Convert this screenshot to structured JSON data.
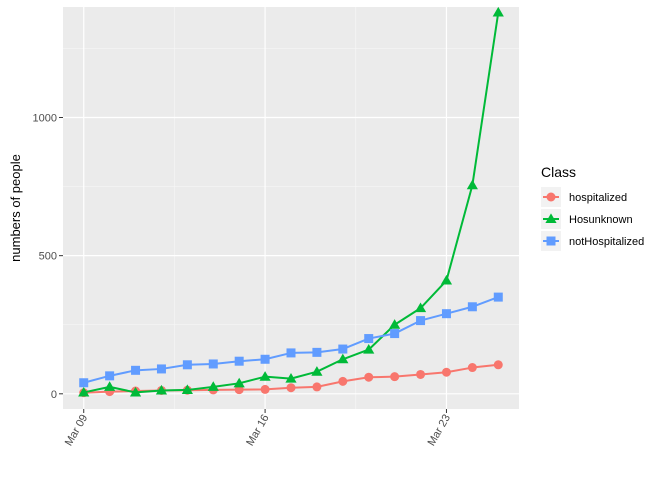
{
  "chart_data": {
    "type": "line",
    "x": [
      "2020-03-09",
      "2020-03-10",
      "2020-03-11",
      "2020-03-12",
      "2020-03-13",
      "2020-03-14",
      "2020-03-15",
      "2020-03-16",
      "2020-03-17",
      "2020-03-18",
      "2020-03-19",
      "2020-03-20",
      "2020-03-21",
      "2020-03-22",
      "2020-03-23",
      "2020-03-24",
      "2020-03-25"
    ],
    "x_tick_labels": [
      "Mar 09",
      "Mar 16",
      "Mar 23"
    ],
    "x_tick_values": [
      "2020-03-09",
      "2020-03-16",
      "2020-03-23"
    ],
    "y_ticks": [
      0,
      500,
      1000
    ],
    "y_tick_labels": [
      "0",
      "500",
      "1000"
    ],
    "ylim": [
      -55,
      1400
    ],
    "ylabel": "numbers of people",
    "xlabel": "",
    "grid": true,
    "legend": {
      "title": "Class",
      "placement": "right"
    },
    "series": [
      {
        "name": "hospitalized",
        "color": "#F8766D",
        "marker": "circle",
        "values": [
          4,
          8,
          10,
          12,
          13,
          14,
          15,
          16,
          22,
          25,
          45,
          60,
          62,
          70,
          78,
          95,
          105
        ]
      },
      {
        "name": "Hosunknown",
        "color": "#00BA38",
        "marker": "triangle",
        "values": [
          5,
          25,
          5,
          12,
          14,
          25,
          38,
          62,
          55,
          80,
          125,
          160,
          250,
          310,
          410,
          755,
          1380
        ]
      },
      {
        "name": "notHospitalized",
        "color": "#619CFF",
        "marker": "square",
        "values": [
          40,
          65,
          85,
          90,
          105,
          108,
          118,
          125,
          148,
          150,
          162,
          200,
          218,
          265,
          290,
          315,
          350
        ]
      }
    ]
  }
}
